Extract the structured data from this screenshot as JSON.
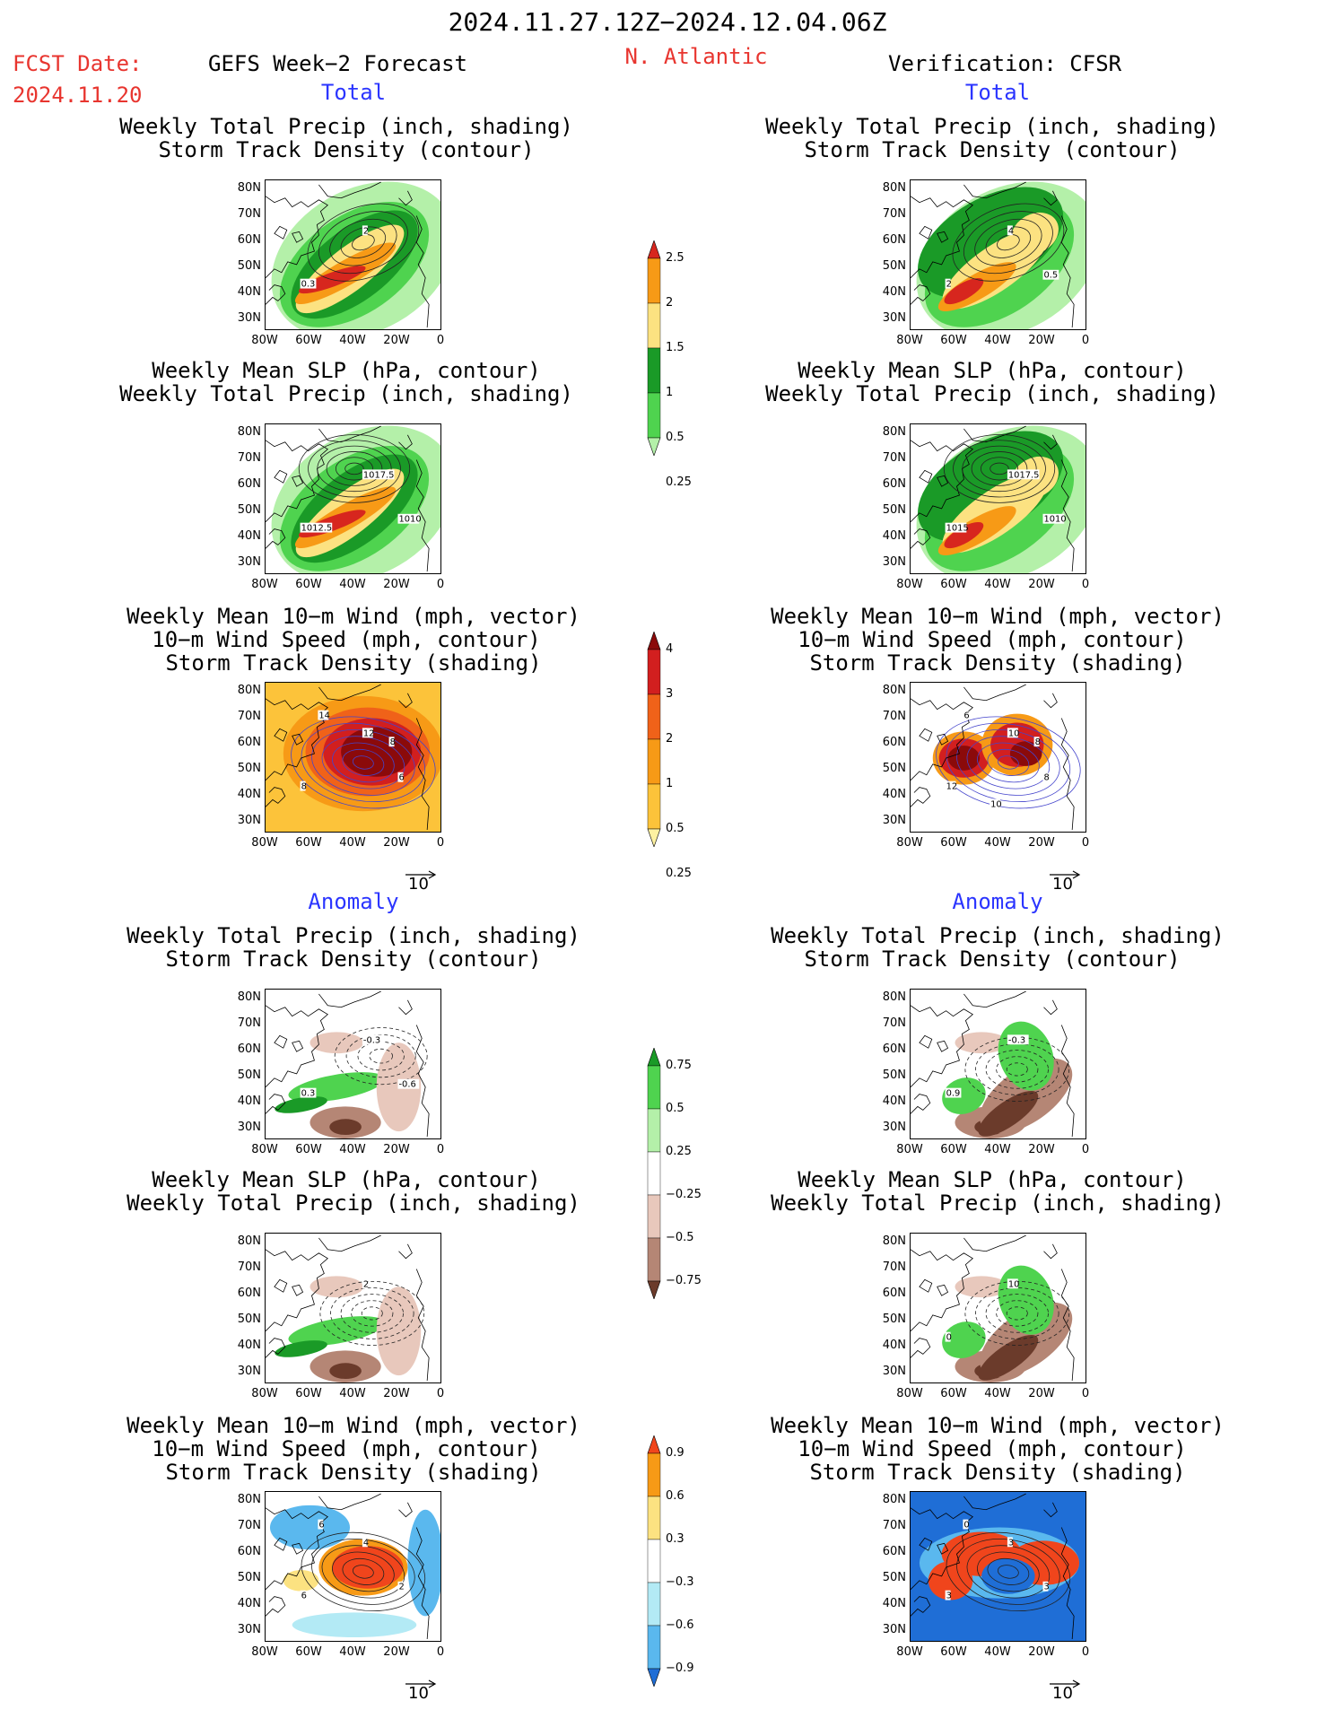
{
  "header": {
    "period": "2024.11.27.12Z−2024.12.04.06Z",
    "fcst_label": "FCST Date:",
    "fcst_date": "2024.11.20",
    "left_title": "GEFS Week−2 Forecast",
    "region": "N. Atlantic",
    "right_title": "Verification: CFSR"
  },
  "sections": {
    "total": "Total",
    "anomaly": "Anomaly"
  },
  "panel_titles": {
    "p1": [
      "Weekly Total Precip (inch, shading)",
      "Storm Track Density (contour)"
    ],
    "p2": [
      "Weekly Mean SLP (hPa, contour)",
      "Weekly Total Precip (inch, shading)"
    ],
    "p3": [
      "Weekly Mean 10−m Wind (mph, vector)",
      "10−m Wind Speed (mph, contour)",
      "Storm Track Density (shading)"
    ]
  },
  "axes": {
    "lat": [
      "80N",
      "70N",
      "60N",
      "50N",
      "40N",
      "30N"
    ],
    "lon": [
      "80W",
      "60W",
      "40W",
      "20W",
      "0"
    ]
  },
  "vector_ref": "10",
  "colorbars": {
    "precip_total": {
      "labels": [
        "2.5",
        "2",
        "1.5",
        "1",
        "0.5",
        "0.25"
      ],
      "colors": [
        "#d7261e",
        "#f79a16",
        "#fce281",
        "#1a9a27",
        "#4fd34f",
        "#b4f0a9"
      ]
    },
    "storm_total": {
      "labels": [
        "4",
        "3",
        "2",
        "1",
        "0.5",
        "0.25"
      ],
      "colors": [
        "#8b0a0a",
        "#d21f1f",
        "#f06219",
        "#f79a16",
        "#fcc33a",
        "#fdf1a1"
      ]
    },
    "precip_anom": {
      "labels": [
        "0.75",
        "0.5",
        "0.25",
        "−0.25",
        "−0.5",
        "−0.75"
      ],
      "colors": [
        "#1a9a27",
        "#4fd34f",
        "#b4f0a9",
        "#ffffff",
        "#e8c8bc",
        "#b58675",
        "#6b3b2b"
      ]
    },
    "storm_anom": {
      "labels": [
        "0.9",
        "0.6",
        "0.3",
        "−0.3",
        "−0.6",
        "−0.9"
      ],
      "colors": [
        "#f0451c",
        "#f79a16",
        "#fce281",
        "#ffffff",
        "#b3eaf5",
        "#5ab8ee",
        "#1f6ed6"
      ]
    }
  },
  "contour_labels": {
    "L1": [
      "2",
      "0.3"
    ],
    "R1": [
      "4",
      "2",
      "0.5"
    ],
    "L2": [
      "1017.5",
      "1012.5",
      "1010"
    ],
    "R2": [
      "1017.5",
      "1015",
      "1010"
    ],
    "L3": [
      "12",
      "8",
      "6",
      "14",
      "8"
    ],
    "R3": [
      "10",
      "12",
      "8",
      "6",
      "8",
      "10"
    ],
    "L4": [
      "-0.3",
      "0.3",
      "-0.6"
    ],
    "R4": [
      "-0.3",
      "0.9"
    ],
    "L5": [
      "2"
    ],
    "R5": [
      "10",
      "0"
    ],
    "L6": [
      "4",
      "6",
      "2",
      "6"
    ],
    "R6": [
      "3",
      "3",
      "3",
      "0"
    ]
  }
}
